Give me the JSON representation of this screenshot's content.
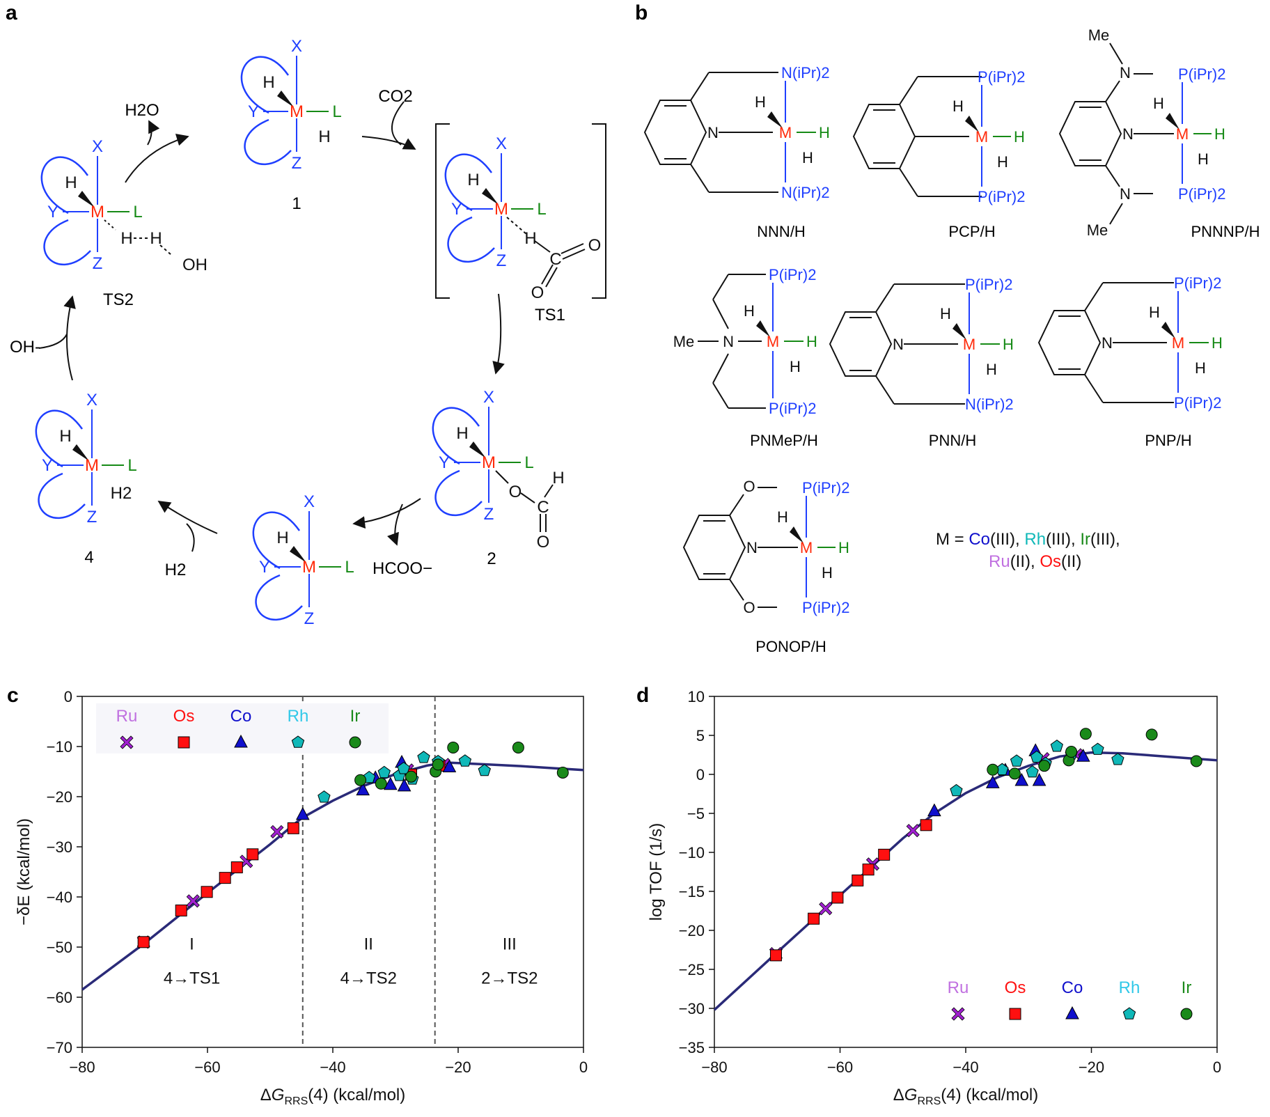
{
  "panels": {
    "a": "a",
    "b": "b",
    "c": "c",
    "d": "d"
  },
  "colors": {
    "blue": "#1f3fff",
    "red": "#ff2a0a",
    "green": "#168a16",
    "black": "#111111",
    "curve": "#2a2a78",
    "Ru": "#a020d0",
    "Os": "#ff1010",
    "Co": "#1010cc",
    "Rh": "#10b8b8",
    "Ir": "#1a8a1a"
  },
  "cycle": {
    "species": {
      "c1": "1",
      "c2": "2",
      "c4": "4",
      "ts1": "TS1",
      "ts2": "TS2"
    },
    "reagents": {
      "co2": "CO2",
      "h2o": "H2O",
      "h2": "H2",
      "oh": "OH-",
      "hcoo": "HCOO−"
    },
    "atoms": {
      "M": "M",
      "X": "X",
      "Y": "Y",
      "Z": "Z",
      "L": "L",
      "H": "H",
      "O": "O",
      "C": "C",
      "OH": "OH",
      "H2": "H2"
    }
  },
  "ligands": [
    {
      "label": "NNN/H"
    },
    {
      "label": "PCP/H"
    },
    {
      "label": "PNNNP/H"
    },
    {
      "label": "PNMeP/H"
    },
    {
      "label": "PNN/H"
    },
    {
      "label": "PNP/H"
    },
    {
      "label": "PONOP/H"
    }
  ],
  "ligand_atoms": {
    "N": "N",
    "M": "M",
    "H": "H",
    "P": "P",
    "O": "O",
    "Me": "Me",
    "NiPr2": "N(iPr)2",
    "PiPr2": "P(iPr)2"
  },
  "metal_legend": {
    "prefix": "M = ",
    "co": "Co",
    "co_ox": "(III), ",
    "rh": "Rh",
    "rh_ox": "(III), ",
    "ir": "Ir",
    "ir_ox": "(III),",
    "ru": "Ru",
    "ru_ox": "(II), ",
    "os": "Os",
    "os_ox": "(II)"
  },
  "chart_data": [
    {
      "panel": "c",
      "type": "scatter",
      "xlabel": "ΔGRRS(4) (kcal/mol)",
      "ylabel": "−δE (kcal/mol)",
      "xlim": [
        -80,
        0
      ],
      "ylim": [
        -70,
        0
      ],
      "xticks": [
        -80,
        -60,
        -40,
        -20,
        0
      ],
      "yticks": [
        0,
        -10,
        -20,
        -30,
        -40,
        -50,
        -60,
        -70
      ],
      "vlines": [
        -44.8,
        -23.7
      ],
      "regions": [
        {
          "roman": "I",
          "path": "4→TS1",
          "x": -62.5
        },
        {
          "roman": "II",
          "path": "4→TS2",
          "x": -34.3
        },
        {
          "roman": "III",
          "path": "2→TS2",
          "x": -11.8
        }
      ],
      "legend": {
        "position": "top-left",
        "entries": [
          "Ru",
          "Os",
          "Co",
          "Rh",
          "Ir"
        ]
      },
      "curve": {
        "x": [
          -80,
          -70,
          -60,
          -50,
          -45,
          -40,
          -35,
          -30,
          -25,
          -22,
          -20,
          -15,
          -10,
          -5,
          0
        ],
        "y": [
          -58.5,
          -49.2,
          -39.2,
          -29.5,
          -24.3,
          -20.8,
          -17.8,
          -15.5,
          -13.8,
          -13.2,
          -13.3,
          -13.6,
          -13.9,
          -14.3,
          -14.7
        ]
      },
      "series": [
        {
          "name": "Ru",
          "marker": "x",
          "x": [
            -70.2,
            -62.3,
            -53.8,
            -48.9,
            -28.1,
            -22.3
          ],
          "y": [
            -49.0,
            -40.8,
            -32.9,
            -27.0,
            -14.7,
            -13.6
          ]
        },
        {
          "name": "Os",
          "marker": "square",
          "x": [
            -70.2,
            -64.2,
            -60.1,
            -57.2,
            -55.3,
            -52.8,
            -46.3,
            -27.5,
            -23.0
          ],
          "y": [
            -49.0,
            -42.7,
            -39.0,
            -36.2,
            -34.1,
            -31.5,
            -26.3,
            -15.6,
            -13.8
          ]
        },
        {
          "name": "Co",
          "marker": "triangle",
          "x": [
            -44.8,
            -35.2,
            -33.2,
            -30.8,
            -29.0,
            -28.6,
            -21.4
          ],
          "y": [
            -23.6,
            -18.7,
            -16.3,
            -17.6,
            -13.2,
            -17.9,
            -14.1
          ]
        },
        {
          "name": "Rh",
          "marker": "pentagon",
          "x": [
            -41.4,
            -34.2,
            -31.8,
            -29.4,
            -28.7,
            -27.3,
            -25.5,
            -23.2,
            -18.9,
            -15.8
          ],
          "y": [
            -20.1,
            -16.2,
            -15.2,
            -15.8,
            -14.4,
            -16.5,
            -12.2,
            -13.0,
            -12.9,
            -14.8
          ],
          "legend_marker": true
        },
        {
          "name": "Ir",
          "marker": "circle",
          "x": [
            -35.6,
            -32.3,
            -27.5,
            -23.6,
            -23.2,
            -20.8,
            -10.4,
            -3.3
          ],
          "y": [
            -16.7,
            -17.4,
            -16.0,
            -15.0,
            -13.6,
            -10.2,
            -10.2,
            -15.2
          ]
        }
      ]
    },
    {
      "panel": "d",
      "type": "scatter",
      "xlabel": "ΔGRRS(4) (kcal/mol)",
      "ylabel": "log TOF (1/s)",
      "xlim": [
        -80,
        0
      ],
      "ylim": [
        -35,
        10
      ],
      "xticks": [
        -80,
        -60,
        -40,
        -20,
        0
      ],
      "yticks": [
        10,
        5,
        0,
        -5,
        -10,
        -15,
        -20,
        -25,
        -30,
        -35
      ],
      "legend": {
        "position": "bottom-right",
        "entries": [
          "Ru",
          "Os",
          "Co",
          "Rh",
          "Ir"
        ]
      },
      "curve": {
        "x": [
          -80,
          -70,
          -60,
          -50,
          -45,
          -40,
          -35,
          -30,
          -25,
          -20,
          -15,
          -10,
          -5,
          0
        ],
        "y": [
          -30.2,
          -22.8,
          -15.5,
          -8.2,
          -5.0,
          -2.4,
          -0.4,
          1.1,
          2.3,
          2.8,
          2.7,
          2.4,
          2.1,
          1.8
        ]
      },
      "series": [
        {
          "name": "Ru",
          "marker": "x",
          "x": [
            -70.2,
            -62.3,
            -54.8,
            -48.4,
            -27.7,
            -22.4
          ],
          "y": [
            -23.0,
            -17.2,
            -11.5,
            -7.2,
            2.0,
            2.5
          ]
        },
        {
          "name": "Os",
          "marker": "square",
          "x": [
            -70.2,
            -64.2,
            -60.4,
            -57.2,
            -55.5,
            -53.0,
            -46.3
          ],
          "y": [
            -23.2,
            -18.5,
            -15.8,
            -13.6,
            -12.2,
            -10.3,
            -6.5
          ]
        },
        {
          "name": "Co",
          "marker": "triangle",
          "x": [
            -45.0,
            -35.7,
            -33.7,
            -31.1,
            -28.9,
            -28.3,
            -21.3
          ],
          "y": [
            -4.7,
            -1.1,
            0.5,
            -0.8,
            3.0,
            -0.8,
            2.3
          ]
        },
        {
          "name": "Rh",
          "marker": "pentagon",
          "x": [
            -41.5,
            -34.2,
            -31.9,
            -29.4,
            -28.7,
            -27.3,
            -25.5,
            -23.2,
            -19.0,
            -15.8
          ],
          "y": [
            -2.1,
            0.6,
            1.7,
            0.3,
            2.2,
            1.4,
            3.6,
            2.6,
            3.2,
            1.9
          ]
        },
        {
          "name": "Ir",
          "marker": "circle",
          "x": [
            -35.7,
            -32.2,
            -27.5,
            -23.6,
            -23.2,
            -20.9,
            -10.4,
            -3.3
          ],
          "y": [
            0.6,
            0.1,
            1.1,
            1.8,
            2.9,
            5.2,
            5.1,
            1.7
          ]
        }
      ]
    }
  ]
}
